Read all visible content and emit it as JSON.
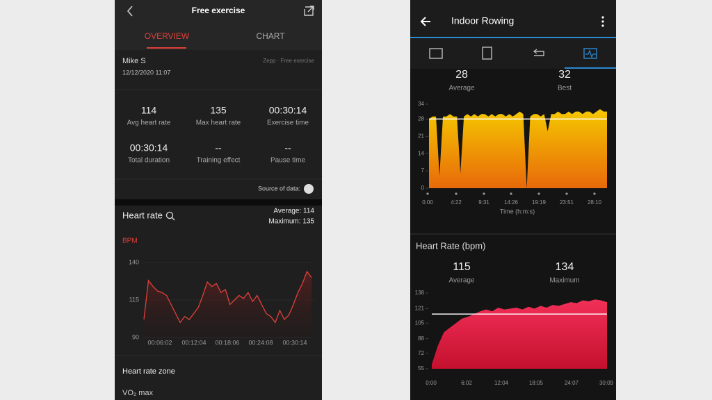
{
  "left": {
    "header": {
      "title": "Free exercise"
    },
    "tabs": [
      "OVERVIEW",
      "CHART"
    ],
    "user": {
      "name": "Mike S",
      "date": "12/12/2020 11:07",
      "source": "Zepp · Free exercise"
    },
    "stats": [
      {
        "value": "114",
        "label": "Avg heart rate"
      },
      {
        "value": "135",
        "label": "Max heart rate"
      },
      {
        "value": "00:30:14",
        "label": "Exercise time"
      },
      {
        "value": "00:30:14",
        "label": "Total duration"
      },
      {
        "value": "--",
        "label": "Training effect"
      },
      {
        "value": "--",
        "label": "Pause time"
      }
    ],
    "source_label": "Source of data:",
    "heart_rate": {
      "title": "Heart rate",
      "average": "Average: 114",
      "maximum": "Maximum: 135",
      "chart": {
        "type": "line",
        "y_label": "BPM",
        "color": "#e0413a",
        "values": [
          102,
          128,
          124,
          121,
          120,
          118,
          112,
          106,
          100,
          104,
          102,
          106,
          110,
          118,
          127,
          124,
          126,
          120,
          122,
          112,
          115,
          118,
          116,
          120,
          114,
          118,
          112,
          106,
          104,
          100,
          108,
          102,
          105,
          112,
          120,
          126,
          134,
          130
        ],
        "ylim": [
          90,
          140
        ],
        "yticks": [
          90,
          115,
          140
        ],
        "x_labels": [
          "00:06:02",
          "00:12:04",
          "00:18:06",
          "00:24:08",
          "00:30:14"
        ]
      }
    },
    "sections": [
      "Heart rate zone",
      "VO₂ max"
    ]
  },
  "right": {
    "header": {
      "title": "Indoor Rowing"
    },
    "stroke_rate": {
      "average": 28,
      "average_label": "Average",
      "best": 32,
      "best_label": "Best",
      "chart": {
        "type": "area",
        "values": [
          28,
          29,
          29,
          5,
          29,
          29,
          30,
          29,
          29,
          6,
          29,
          30,
          29,
          30,
          29,
          30,
          30,
          29,
          30,
          29,
          30,
          30,
          29,
          30,
          29,
          30,
          31,
          30,
          0,
          29,
          30,
          30,
          29,
          30,
          23,
          30,
          30,
          31,
          30,
          30,
          31,
          30,
          31,
          31,
          30,
          31,
          31,
          30,
          31,
          32,
          31,
          31
        ],
        "ylim": [
          0,
          34
        ],
        "yticks": [
          0,
          7,
          14,
          21,
          28,
          34
        ],
        "x_labels": [
          "0:00",
          "4:22",
          "9:31",
          "14:26",
          "19:19",
          "23:51",
          "28:10"
        ],
        "x_title": "Time (h:m:s)"
      }
    },
    "heart_rate": {
      "title": "Heart Rate (bpm)",
      "average": 115,
      "average_label": "Average",
      "maximum": 134,
      "maximum_label": "Maximum",
      "chart": {
        "type": "area",
        "values": [
          60,
          80,
          95,
          100,
          105,
          110,
          112,
          115,
          118,
          120,
          118,
          122,
          120,
          121,
          122,
          120,
          123,
          121,
          124,
          122,
          125,
          124,
          126,
          128,
          127,
          130,
          129,
          131,
          130,
          128
        ],
        "ylim": [
          55,
          138
        ],
        "yticks": [
          55,
          72,
          88,
          105,
          121,
          138
        ],
        "x_labels": [
          "0:00",
          "6:02",
          "12:04",
          "18:05",
          "24:07",
          "30:09"
        ]
      }
    }
  }
}
